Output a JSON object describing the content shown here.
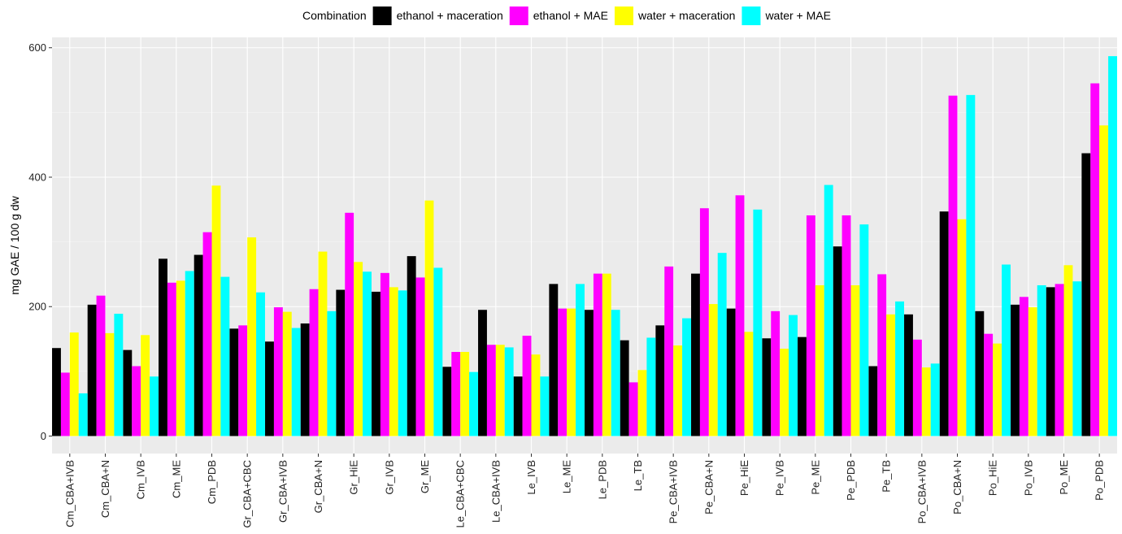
{
  "chart_data": {
    "type": "bar",
    "xlabel": "",
    "ylabel": "mg GAE / 100 g dw",
    "ylim": [
      -27,
      616
    ],
    "yticks": [
      0,
      200,
      400,
      600
    ],
    "grid": true,
    "legend_position": "top",
    "legend_title": "Combination",
    "categories": [
      "Cm_CBA+IVB",
      "Cm_CBA+N",
      "Cm_IVB",
      "Cm_ME",
      "Cm_PDB",
      "Gr_CBA+CBC",
      "Gr_CBA+IVB",
      "Gr_CBA+N",
      "Gr_HiE",
      "Gr_IVB",
      "Gr_ME",
      "Le_CBA+CBC",
      "Le_CBA+IVB",
      "Le_IVB",
      "Le_ME",
      "Le_PDB",
      "Le_TB",
      "Pe_CBA+IVB",
      "Pe_CBA+N",
      "Pe_HiE",
      "Pe_IVB",
      "Pe_ME",
      "Pe_PDB",
      "Pe_TB",
      "Po_CBA+IVB",
      "Po_CBA+N",
      "Po_HiE",
      "Po_IVB",
      "Po_ME",
      "Po_PDB"
    ],
    "series": [
      {
        "name": "ethanol + maceration",
        "color": "#000000",
        "values": [
          136,
          203,
          133,
          274,
          280,
          166,
          146,
          174,
          226,
          223,
          278,
          107,
          195,
          92,
          235,
          195,
          148,
          171,
          251,
          197,
          151,
          153,
          293,
          108,
          188,
          347,
          193,
          203,
          230,
          437
        ]
      },
      {
        "name": "ethanol + MAE",
        "color": "#ff00ff",
        "values": [
          98,
          217,
          108,
          237,
          315,
          171,
          199,
          227,
          345,
          252,
          245,
          130,
          141,
          155,
          197,
          251,
          83,
          262,
          352,
          372,
          193,
          341,
          341,
          250,
          149,
          526,
          158,
          215,
          235,
          545
        ]
      },
      {
        "name": "water + maceration",
        "color": "#ffff00",
        "values": [
          160,
          159,
          156,
          240,
          387,
          307,
          192,
          285,
          269,
          230,
          364,
          130,
          141,
          126,
          197,
          251,
          102,
          140,
          204,
          161,
          135,
          233,
          233,
          188,
          106,
          335,
          143,
          199,
          264,
          480
        ]
      },
      {
        "name": "water + MAE",
        "color": "#00ffff",
        "values": [
          66,
          189,
          92,
          255,
          246,
          222,
          167,
          193,
          254,
          225,
          260,
          99,
          137,
          92,
          235,
          195,
          152,
          182,
          283,
          350,
          187,
          388,
          327,
          208,
          112,
          527,
          265,
          233,
          239,
          587
        ]
      }
    ]
  }
}
